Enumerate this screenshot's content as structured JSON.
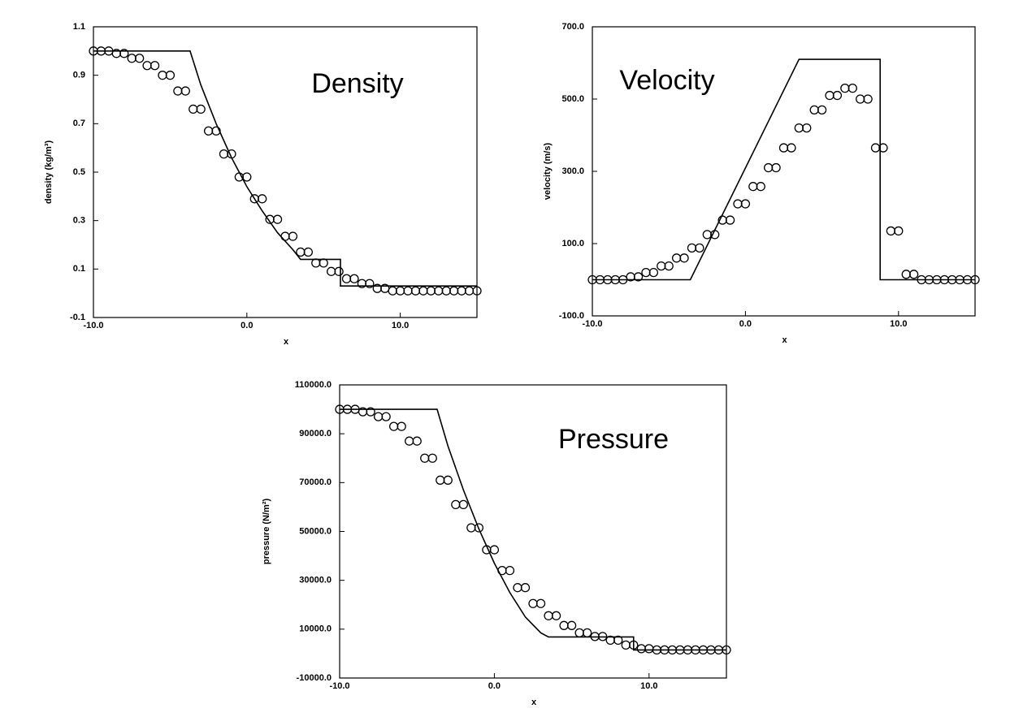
{
  "chart_data": [
    {
      "type": "line",
      "annotation": "Density",
      "xlabel": "x",
      "ylabel": "density (kg/m³)",
      "xlim": [
        -10,
        15
      ],
      "ylim": [
        -0.1,
        1.1
      ],
      "xticks": [
        {
          "value": -10,
          "label": "-10.0"
        },
        {
          "value": 0,
          "label": "0.0"
        },
        {
          "value": 10,
          "label": "10.0"
        }
      ],
      "yticks": [
        -0.1,
        0.1,
        0.3,
        0.5,
        0.7,
        0.9,
        1.1
      ],
      "series": [
        {
          "style": "line",
          "color": "#000000",
          "x": [
            -10,
            -3.7,
            -3,
            -2,
            -1,
            0,
            1,
            2,
            3,
            3.5,
            6.1,
            6.1,
            15
          ],
          "values": [
            1,
            1,
            0.86,
            0.7,
            0.56,
            0.44,
            0.34,
            0.25,
            0.18,
            0.14,
            0.14,
            0.03,
            0.03
          ]
        },
        {
          "style": "open-circle",
          "color": "#000000",
          "x": [
            -10,
            -9.5,
            -9,
            -8.5,
            -8,
            -7.5,
            -7,
            -6.5,
            -6,
            -5.5,
            -5,
            -4.5,
            -4,
            -3.5,
            -3,
            -2.5,
            -2,
            -1.5,
            -1,
            -0.5,
            0,
            0.5,
            1,
            1.5,
            2,
            2.5,
            3,
            3.5,
            4,
            4.5,
            5,
            5.5,
            6,
            6.5,
            7,
            7.5,
            8,
            8.5,
            9,
            9.5,
            10,
            10.5,
            11,
            11.5,
            12,
            12.5,
            13,
            13.5,
            14,
            14.5,
            15
          ],
          "values": [
            1,
            1,
            1,
            0.99,
            0.99,
            0.97,
            0.97,
            0.94,
            0.94,
            0.9,
            0.9,
            0.835,
            0.835,
            0.76,
            0.76,
            0.67,
            0.67,
            0.575,
            0.575,
            0.48,
            0.48,
            0.39,
            0.39,
            0.305,
            0.305,
            0.235,
            0.235,
            0.17,
            0.17,
            0.125,
            0.125,
            0.09,
            0.09,
            0.06,
            0.06,
            0.04,
            0.04,
            0.02,
            0.02,
            0.01,
            0.01,
            0.01,
            0.01,
            0.01,
            0.01,
            0.01,
            0.01,
            0.01,
            0.01,
            0.01,
            0.01
          ]
        }
      ]
    },
    {
      "type": "line",
      "annotation": "Velocity",
      "xlabel": "x",
      "ylabel": "velocity (m/s)",
      "xlim": [
        -10,
        15
      ],
      "ylim": [
        -100,
        700
      ],
      "xticks": [
        {
          "value": -10,
          "label": "-10.0"
        },
        {
          "value": 0,
          "label": "0.0"
        },
        {
          "value": 10,
          "label": "10.0"
        }
      ],
      "yticks": [
        {
          "value": -100,
          "label": "-100.0"
        },
        {
          "value": 100,
          "label": "100.0"
        },
        {
          "value": 300,
          "label": "300.0"
        },
        {
          "value": 500,
          "label": "500.0"
        },
        {
          "value": 700,
          "label": "700.0"
        }
      ],
      "series": [
        {
          "style": "line",
          "color": "#000000",
          "x": [
            -10,
            -3.6,
            3.5,
            8.8,
            8.8,
            15
          ],
          "values": [
            0,
            0,
            610,
            610,
            0,
            0
          ]
        },
        {
          "style": "open-circle",
          "color": "#000000",
          "x": [
            -10,
            -9.5,
            -9,
            -8.5,
            -8,
            -7.5,
            -7,
            -6.5,
            -6,
            -5.5,
            -5,
            -4.5,
            -4,
            -3.5,
            -3,
            -2.5,
            -2,
            -1.5,
            -1,
            -0.5,
            0,
            0.5,
            1,
            1.5,
            2,
            2.5,
            3,
            3.5,
            4,
            4.5,
            5,
            5.5,
            6,
            6.5,
            7,
            7.5,
            8,
            8.5,
            9,
            9.5,
            10,
            10.5,
            11,
            11.5,
            12,
            12.5,
            13,
            13.5,
            14,
            14.5,
            15
          ],
          "values": [
            0,
            0,
            0,
            0,
            0,
            8,
            8,
            20,
            20,
            38,
            38,
            60,
            60,
            88,
            88,
            125,
            125,
            165,
            165,
            210,
            210,
            258,
            258,
            310,
            310,
            365,
            365,
            420,
            420,
            470,
            470,
            510,
            510,
            530,
            530,
            500,
            500,
            365,
            365,
            135,
            135,
            15,
            15,
            0,
            0,
            0,
            0,
            0,
            0,
            0,
            0
          ]
        }
      ]
    },
    {
      "type": "line",
      "annotation": "Pressure",
      "xlabel": "x",
      "ylabel": "pressure (N/m²)",
      "xlim": [
        -10,
        15
      ],
      "ylim": [
        -10000,
        110000
      ],
      "xticks": [
        {
          "value": -10,
          "label": "-10.0"
        },
        {
          "value": 0,
          "label": "0.0"
        },
        {
          "value": 10,
          "label": "10.0"
        }
      ],
      "yticks": [
        {
          "value": -10000,
          "label": "-10000.0"
        },
        {
          "value": 10000,
          "label": "10000.0"
        },
        {
          "value": 30000,
          "label": "30000.0"
        },
        {
          "value": 50000,
          "label": "50000.0"
        },
        {
          "value": 70000,
          "label": "70000.0"
        },
        {
          "value": 90000,
          "label": "90000.0"
        },
        {
          "value": 110000,
          "label": "110000.0"
        }
      ],
      "series": [
        {
          "style": "line",
          "color": "#000000",
          "x": [
            -10,
            -3.7,
            -3,
            -2,
            -1,
            0,
            1,
            2,
            3,
            3.5,
            9,
            9,
            15
          ],
          "values": [
            100000,
            100000,
            85000,
            67000,
            51000,
            37000,
            25000,
            15000,
            8500,
            6800,
            6800,
            1500,
            1500
          ]
        },
        {
          "style": "open-circle",
          "color": "#000000",
          "x": [
            -10,
            -9.5,
            -9,
            -8.5,
            -8,
            -7.5,
            -7,
            -6.5,
            -6,
            -5.5,
            -5,
            -4.5,
            -4,
            -3.5,
            -3,
            -2.5,
            -2,
            -1.5,
            -1,
            -0.5,
            0,
            0.5,
            1,
            1.5,
            2,
            2.5,
            3,
            3.5,
            4,
            4.5,
            5,
            5.5,
            6,
            6.5,
            7,
            7.5,
            8,
            8.5,
            9,
            9.5,
            10,
            10.5,
            11,
            11.5,
            12,
            12.5,
            13,
            13.5,
            14,
            14.5,
            15
          ],
          "values": [
            100000,
            100000,
            100000,
            99000,
            99000,
            97000,
            97000,
            93000,
            93000,
            87000,
            87000,
            80000,
            80000,
            71000,
            71000,
            61000,
            61000,
            51500,
            51500,
            42500,
            42500,
            34000,
            34000,
            27000,
            27000,
            20500,
            20500,
            15500,
            15500,
            11500,
            11500,
            8500,
            8500,
            7000,
            7000,
            5500,
            5500,
            3500,
            3500,
            2000,
            2000,
            1500,
            1500,
            1500,
            1500,
            1500,
            1500,
            1500,
            1500,
            1500,
            1500
          ]
        }
      ]
    }
  ]
}
